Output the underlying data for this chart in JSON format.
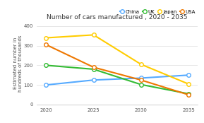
{
  "title": "Number of cars manufactured , 2020 - 2035",
  "ylabel": "Estimated number in\nhundreds of thousands",
  "years": [
    2020,
    2025,
    2030,
    2035
  ],
  "series": {
    "China": {
      "values": [
        100,
        125,
        135,
        150
      ],
      "color": "#55aaff",
      "marker": "o",
      "markerfacecolor": "white"
    },
    "UK": {
      "values": [
        200,
        180,
        102,
        55
      ],
      "color": "#33bb33",
      "marker": "o",
      "markerfacecolor": "white"
    },
    "Japan": {
      "values": [
        340,
        355,
        205,
        105
      ],
      "color": "#ffcc00",
      "marker": "o",
      "markerfacecolor": "white"
    },
    "USA": {
      "values": [
        305,
        190,
        125,
        50
      ],
      "color": "#ee7700",
      "marker": "o",
      "markerfacecolor": "white"
    }
  },
  "ylim": [
    0,
    420
  ],
  "yticks": [
    0,
    100,
    200,
    300,
    400
  ],
  "ytick_labels": [
    "0",
    "100",
    "200",
    "300",
    "400"
  ],
  "xticks": [
    2020,
    2025,
    2030,
    2035
  ],
  "background_color": "#ffffff",
  "title_fontsize": 6.5,
  "label_fontsize": 5,
  "tick_fontsize": 5,
  "legend_fontsize": 5,
  "line_width": 1.5,
  "markersize": 4
}
